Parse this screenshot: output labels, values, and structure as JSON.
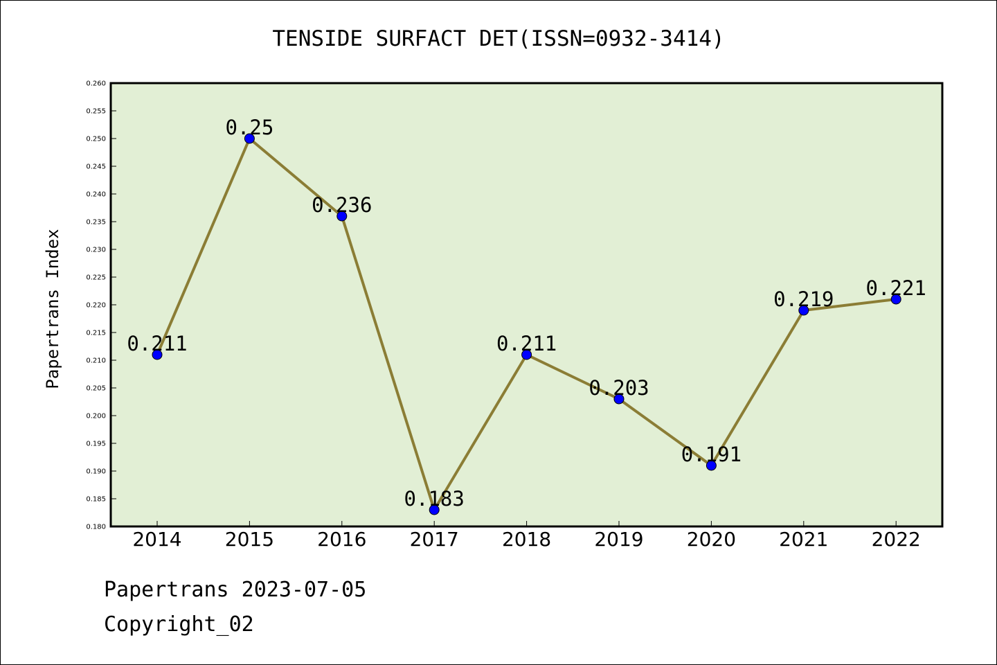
{
  "chart_data": {
    "type": "line",
    "title": "TENSIDE SURFACT DET(ISSN=0932-3414)",
    "xlabel": "",
    "ylabel": "Papertrans Index",
    "categories": [
      "2014",
      "2015",
      "2016",
      "2017",
      "2018",
      "2019",
      "2020",
      "2021",
      "2022"
    ],
    "series": [
      {
        "values": [
          0.211,
          0.25,
          0.236,
          0.183,
          0.211,
          0.203,
          0.191,
          0.219,
          0.221
        ],
        "labels": [
          "0.211",
          "0.25",
          "0.236",
          "0.183",
          "0.211",
          "0.203",
          "0.191",
          "0.219",
          "0.221"
        ]
      }
    ],
    "ylim": [
      0.18,
      0.26
    ],
    "yticks": [
      "0.180",
      "0.185",
      "0.190",
      "0.195",
      "0.200",
      "0.205",
      "0.210",
      "0.215",
      "0.220",
      "0.225",
      "0.230",
      "0.235",
      "0.240",
      "0.245",
      "0.250",
      "0.255",
      "0.260"
    ],
    "grid": false,
    "colors": {
      "plot_background": "#e2efd5",
      "line": "#8b7d35",
      "marker": "#0000ff"
    }
  },
  "footer": {
    "date_line": "Papertrans 2023-07-05",
    "copyright": "Copyright_02"
  }
}
